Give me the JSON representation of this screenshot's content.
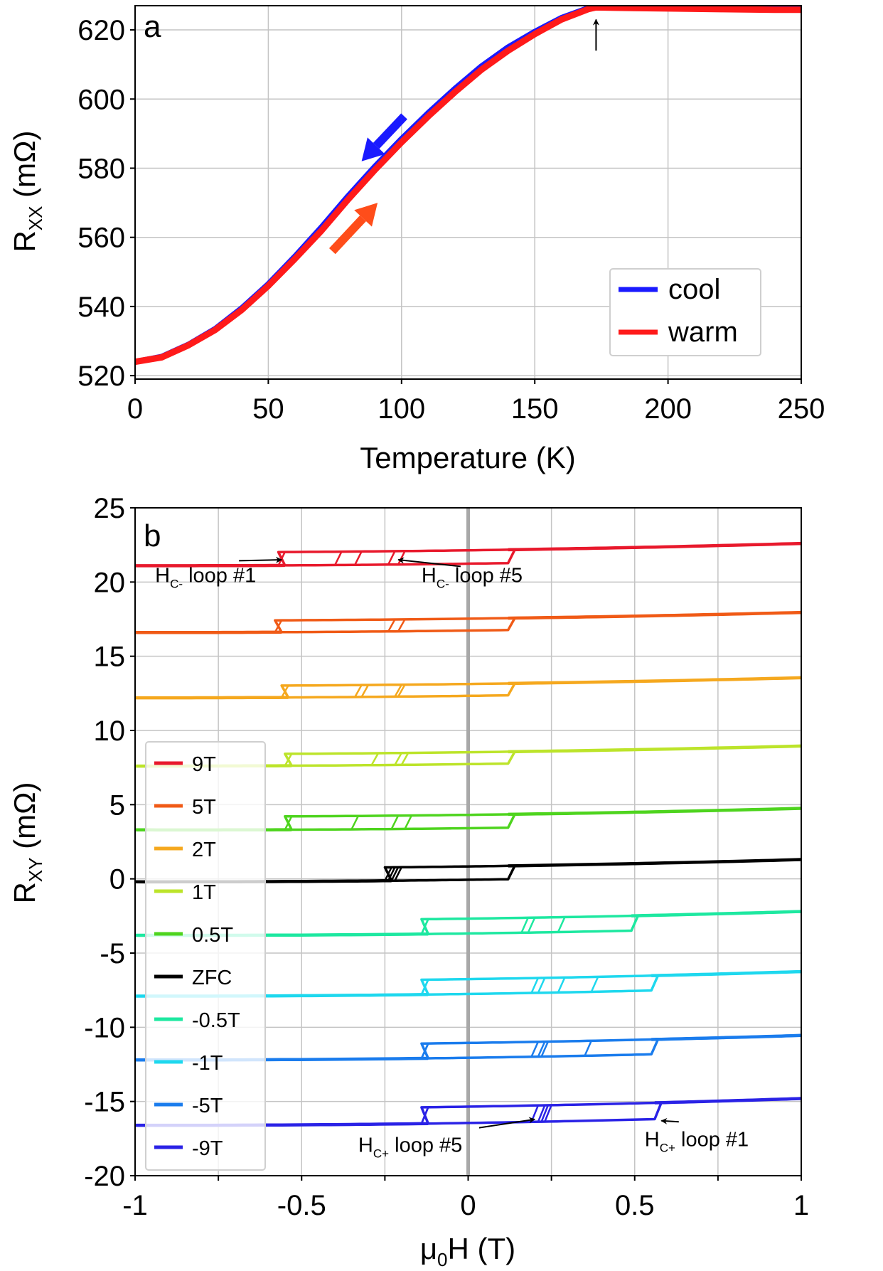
{
  "chart_data": [
    {
      "type": "line",
      "panel_label": "a",
      "xlabel": "Temperature (K)",
      "ylabel": {
        "main": "R",
        "sub": "XX",
        "unit": " (mΩ)"
      },
      "xlim": [
        0,
        250
      ],
      "ylim": [
        519,
        627
      ],
      "xticks": [
        0,
        50,
        100,
        150,
        200,
        250
      ],
      "yticks": [
        520,
        540,
        560,
        580,
        600,
        620
      ],
      "grid": true,
      "legend": {
        "placement": "bottom-right",
        "entries": [
          "cool",
          "warm"
        ]
      },
      "series": [
        {
          "name": "cool",
          "color": "#1a1aff",
          "x": [
            0,
            10,
            20,
            30,
            40,
            50,
            60,
            70,
            80,
            90,
            100,
            110,
            120,
            130,
            140,
            150,
            160,
            170,
            173,
            180,
            200,
            220,
            240,
            250
          ],
          "y": [
            524,
            525.5,
            529,
            533.5,
            539.5,
            546.5,
            554.5,
            563,
            572,
            580.5,
            588.5,
            596,
            603,
            609.5,
            615,
            619.5,
            623.5,
            626.3,
            626.7,
            626.6,
            626.4,
            626.2,
            626.0,
            626.0
          ]
        },
        {
          "name": "warm",
          "color": "#ff1a1a",
          "x": [
            0,
            10,
            20,
            30,
            40,
            50,
            60,
            70,
            80,
            90,
            100,
            110,
            120,
            130,
            140,
            150,
            160,
            170,
            173,
            180,
            200,
            220,
            240,
            250
          ],
          "y": [
            524,
            525.3,
            528.8,
            533.2,
            539,
            546,
            553.8,
            562,
            571,
            579.5,
            587.5,
            595,
            602,
            608.5,
            614,
            618.8,
            623,
            626,
            626.5,
            626.4,
            626.2,
            626.0,
            625.8,
            625.8
          ]
        }
      ],
      "annotations": [
        {
          "kind": "arrow",
          "label": "cooling direction",
          "color": "#1a1aff",
          "from": [
            101,
            595
          ],
          "to": [
            85,
            582
          ]
        },
        {
          "kind": "arrow",
          "label": "warming direction",
          "color": "#ff4d1a",
          "from": [
            74,
            556
          ],
          "to": [
            91,
            570
          ]
        },
        {
          "kind": "arrow",
          "label": "transition marker",
          "color": "#000000",
          "from": [
            173,
            614
          ],
          "to": [
            173,
            623
          ]
        }
      ]
    },
    {
      "type": "line",
      "panel_label": "b",
      "xlabel": {
        "main": "μ",
        "sub": "0",
        "rest": "H (T)"
      },
      "ylabel": {
        "main": "R",
        "sub": "XY",
        "unit": " (mΩ)"
      },
      "xlim": [
        -1,
        1
      ],
      "ylim": [
        -20,
        25
      ],
      "xticks": [
        -1,
        -0.5,
        0,
        0.5,
        1
      ],
      "xticklabels": [
        "-1",
        "-0.5",
        "0",
        "0.5",
        "1"
      ],
      "yticks": [
        25,
        20,
        15,
        10,
        5,
        0,
        -5,
        -10,
        -15,
        -20
      ],
      "grid": true,
      "zero_line": {
        "x": 0,
        "color": "#a8a8a8"
      },
      "legend": {
        "placement": "left"
      },
      "series": [
        {
          "name": "9T",
          "color": "#e8192c",
          "base": 21.1,
          "slope": 0.6,
          "step": 0.9,
          "hc_plus": [
            0.12
          ],
          "hc_minus": [
            -0.55,
            -0.38,
            -0.32,
            -0.22,
            -0.19
          ]
        },
        {
          "name": "5T",
          "color": "#f05a16",
          "base": 16.6,
          "slope": 0.55,
          "step": 0.8,
          "hc_plus": [
            0.12
          ],
          "hc_minus": [
            -0.56,
            -0.22,
            -0.19
          ]
        },
        {
          "name": "2T",
          "color": "#f5a81e",
          "base": 12.2,
          "slope": 0.55,
          "step": 0.8,
          "hc_plus": [
            0.12
          ],
          "hc_minus": [
            -0.54,
            -0.32,
            -0.3,
            -0.2,
            -0.19
          ]
        },
        {
          "name": "1T",
          "color": "#bce42a",
          "base": 7.6,
          "slope": 0.55,
          "step": 0.8,
          "hc_plus": [
            0.12
          ],
          "hc_minus": [
            -0.53,
            -0.27,
            -0.2,
            -0.18
          ]
        },
        {
          "name": "0.5T",
          "color": "#4ed41e",
          "base": 3.3,
          "slope": 0.55,
          "step": 0.9,
          "hc_plus": [
            0.12
          ],
          "hc_minus": [
            -0.53,
            -0.33,
            -0.21,
            -0.17
          ]
        },
        {
          "name": "ZFC",
          "color": "#000000",
          "base": -0.2,
          "slope": 0.6,
          "step": 0.9,
          "hc_plus": [
            0.12
          ],
          "hc_minus": [
            -0.23,
            -0.22,
            -0.21,
            -0.2
          ]
        },
        {
          "name": "-0.5T",
          "color": "#1de8a0",
          "base": -3.8,
          "slope": 0.6,
          "step": 1.0,
          "hc_plus": [
            0.16,
            0.18,
            0.27,
            0.49
          ],
          "hc_minus": [
            -0.12
          ]
        },
        {
          "name": "-1T",
          "color": "#1ed8ee",
          "base": -7.9,
          "slope": 0.65,
          "step": 1.0,
          "hc_plus": [
            0.19,
            0.21,
            0.27,
            0.37,
            0.55
          ],
          "hc_minus": [
            -0.12
          ]
        },
        {
          "name": "-5T",
          "color": "#1a7ced",
          "base": -12.2,
          "slope": 0.65,
          "step": 1.0,
          "hc_plus": [
            0.19,
            0.21,
            0.22,
            0.35,
            0.55
          ],
          "hc_minus": [
            -0.12
          ]
        },
        {
          "name": "-9T",
          "color": "#2a22e6",
          "base": -16.6,
          "slope": 0.7,
          "step": 1.1,
          "hc_plus": [
            0.19,
            0.21,
            0.22,
            0.23,
            0.56
          ],
          "hc_minus": [
            -0.12
          ]
        }
      ],
      "annotations": [
        {
          "main": "H",
          "sub": "C-",
          "rest": " loop #1",
          "text_at": [
            -0.94,
            20.0
          ],
          "arrow_to": [
            -0.56,
            21.5
          ]
        },
        {
          "main": "H",
          "sub": "C-",
          "rest": " loop #5",
          "text_at": [
            -0.14,
            20.0
          ],
          "arrow_to": [
            -0.21,
            21.5
          ]
        },
        {
          "main": "H",
          "sub": "C+",
          "rest": " loop #5",
          "text_at": [
            -0.33,
            -18.4
          ],
          "arrow_to": [
            0.2,
            -16.2
          ]
        },
        {
          "main": "H",
          "sub": "C+",
          "rest": " loop #1",
          "text_at": [
            0.53,
            -18.0
          ],
          "arrow_to": [
            0.58,
            -16.3
          ]
        }
      ]
    }
  ]
}
